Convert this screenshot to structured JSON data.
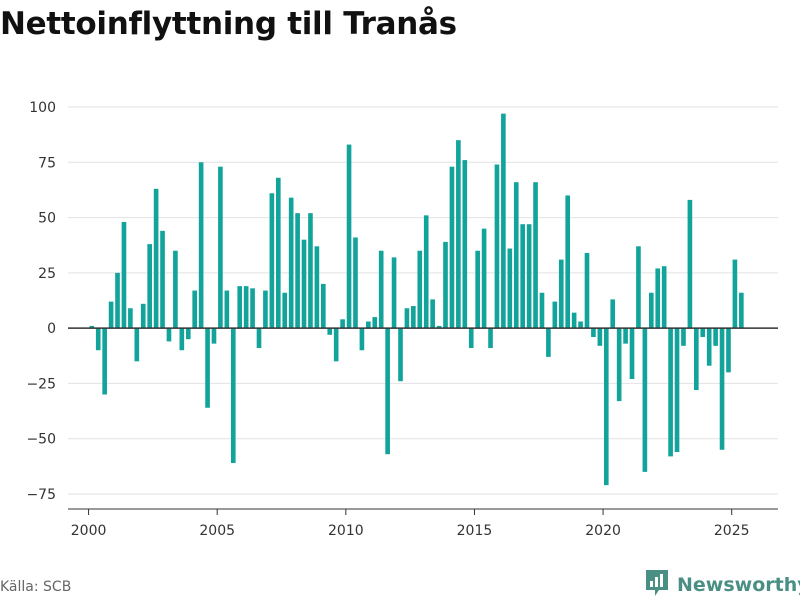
{
  "title": "Nettoinflyttning till Tranås",
  "source": "Källa: SCB",
  "brand": {
    "name": "Newsworthy",
    "icon": "newsworthy-logo-icon"
  },
  "colors": {
    "bar": "#12a39a",
    "grid": "#e2e2e2",
    "axis": "#333333",
    "brand": "#4a8f83"
  },
  "chart_data": {
    "type": "bar",
    "title": "Nettoinflyttning till Tranås",
    "xlabel": "",
    "ylabel": "",
    "ylim": [
      -75,
      100
    ],
    "xlim": [
      1999.2,
      2026.8
    ],
    "yticks": [
      -75,
      -50,
      -25,
      0,
      25,
      50,
      75,
      100
    ],
    "ytick_labels": [
      "−75",
      "−50",
      "−25",
      "0",
      "25",
      "50",
      "75",
      "100"
    ],
    "xticks": [
      2000,
      2005,
      2010,
      2015,
      2020,
      2025
    ],
    "xtick_labels": [
      "2000",
      "2005",
      "2010",
      "2015",
      "2020",
      "2025"
    ],
    "grid": true,
    "frequency": "quarterly",
    "start_period": "2000 Q1",
    "values": [
      1,
      -10,
      -30,
      12,
      25,
      48,
      9,
      -15,
      11,
      38,
      63,
      44,
      -6,
      35,
      -10,
      -5,
      17,
      75,
      -36,
      -7,
      73,
      17,
      -61,
      19,
      19,
      18,
      -9,
      17,
      61,
      68,
      16,
      59,
      52,
      40,
      52,
      37,
      20,
      -3,
      -15,
      4,
      83,
      41,
      -10,
      3,
      5,
      35,
      -57,
      32,
      -24,
      9,
      10,
      35,
      51,
      13,
      1,
      39,
      73,
      85,
      76,
      -9,
      35,
      45,
      -9,
      74,
      97,
      36,
      66,
      47,
      47,
      66,
      16,
      -13,
      12,
      31,
      60,
      7,
      3,
      34,
      -4,
      -8,
      -71,
      13,
      -33,
      -7,
      -23,
      37,
      -65,
      16,
      27,
      28,
      -58,
      -56,
      -8,
      58,
      -28,
      -4,
      -17,
      -8,
      -55,
      -20,
      31,
      16
    ]
  }
}
